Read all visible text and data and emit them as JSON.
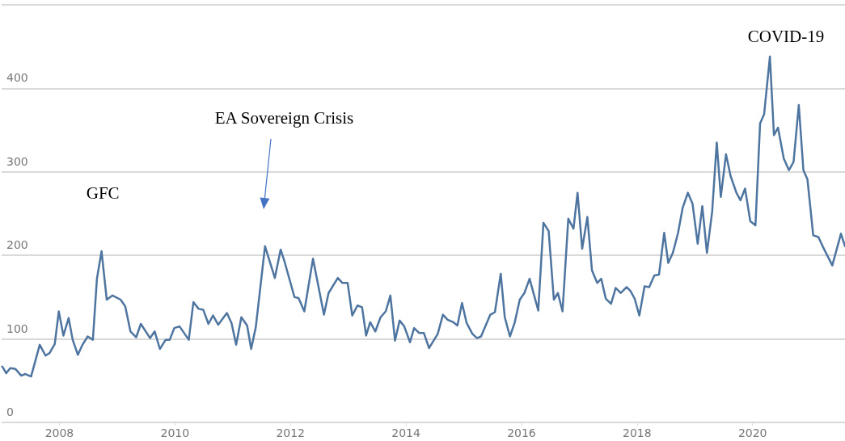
{
  "chart_data": {
    "type": "line",
    "xlim": [
      2007,
      2021.6
    ],
    "xticks": [
      2008,
      2010,
      2012,
      2014,
      2016,
      2018,
      2020
    ],
    "ylim": [
      0,
      500
    ],
    "yticks": [
      0,
      100,
      200,
      300,
      400,
      {
        "value": 500,
        "label": null
      }
    ],
    "grid": "y",
    "marker": "none",
    "line_style": "solid",
    "annotations": [
      "GFC",
      "EA Sovereign Crisis",
      "COVID-19"
    ],
    "series": [
      {
        "color": "#4e74a0",
        "x": [
          2007.01,
          2007.08,
          2007.15,
          2007.24,
          2007.34,
          2007.41,
          2007.51,
          2007.66,
          2007.76,
          2007.83,
          2007.92,
          2007.99,
          2008.07,
          2008.16,
          2008.23,
          2008.32,
          2008.4,
          2008.49,
          2008.58,
          2008.65,
          2008.73,
          2008.82,
          2008.92,
          2009.06,
          2009.14,
          2009.23,
          2009.33,
          2009.41,
          2009.57,
          2009.65,
          2009.74,
          2009.84,
          2009.91,
          2009.99,
          2010.08,
          2010.24,
          2010.32,
          2010.41,
          2010.49,
          2010.58,
          2010.66,
          2010.75,
          2010.9,
          2010.98,
          2011.06,
          2011.15,
          2011.25,
          2011.32,
          2011.4,
          2011.56,
          2011.73,
          2011.83,
          2011.9,
          2012.07,
          2012.14,
          2012.24,
          2012.39,
          2012.58,
          2012.66,
          2012.82,
          2012.9,
          2012.99,
          2013.07,
          2013.16,
          2013.24,
          2013.31,
          2013.38,
          2013.47,
          2013.56,
          2013.65,
          2013.73,
          2013.81,
          2013.89,
          2013.97,
          2014.07,
          2014.14,
          2014.23,
          2014.31,
          2014.4,
          2014.55,
          2014.64,
          2014.72,
          2014.82,
          2014.89,
          2014.97,
          2015.05,
          2015.15,
          2015.23,
          2015.3,
          2015.46,
          2015.54,
          2015.64,
          2015.71,
          2015.8,
          2015.88,
          2015.97,
          2016.05,
          2016.14,
          2016.29,
          2016.38,
          2016.47,
          2016.56,
          2016.63,
          2016.71,
          2016.81,
          2016.9,
          2016.97,
          2017.05,
          2017.14,
          2017.22,
          2017.31,
          2017.38,
          2017.46,
          2017.55,
          2017.63,
          2017.72,
          2017.82,
          2017.89,
          2017.96,
          2018.04,
          2018.13,
          2018.21,
          2018.3,
          2018.38,
          2018.47,
          2018.54,
          2018.62,
          2018.71,
          2018.79,
          2018.88,
          2018.96,
          2019.05,
          2019.13,
          2019.21,
          2019.3,
          2019.38,
          2019.45,
          2019.54,
          2019.62,
          2019.72,
          2019.79,
          2019.87,
          2019.96,
          2020.05,
          2020.13,
          2020.2,
          2020.3,
          2020.37,
          2020.44,
          2020.54,
          2020.63,
          2020.71,
          2020.8,
          2020.88,
          2020.95,
          2021.05,
          2021.14,
          2021.22,
          2021.38,
          2021.53,
          2021.6
        ],
        "values": [
          67,
          59,
          65,
          64,
          56,
          58,
          55,
          93,
          80,
          83,
          94,
          133,
          104,
          125,
          99,
          81,
          93,
          103,
          99,
          172,
          205,
          147,
          152,
          147,
          139,
          109,
          102,
          118,
          101,
          109,
          88,
          99,
          99,
          113,
          115,
          99,
          144,
          136,
          135,
          118,
          128,
          117,
          131,
          119,
          93,
          126,
          116,
          88,
          114,
          211,
          173,
          207,
          192,
          150,
          149,
          133,
          196,
          129,
          155,
          173,
          167,
          167,
          128,
          140,
          138,
          104,
          120,
          109,
          126,
          133,
          152,
          98,
          122,
          115,
          96,
          113,
          107,
          107,
          89,
          106,
          129,
          123,
          120,
          116,
          143,
          119,
          106,
          101,
          103,
          129,
          132,
          178,
          126,
          103,
          119,
          147,
          155,
          172,
          134,
          239,
          229,
          147,
          155,
          133,
          244,
          232,
          275,
          208,
          246,
          182,
          167,
          172,
          148,
          142,
          161,
          155,
          162,
          157,
          148,
          128,
          163,
          162,
          176,
          177,
          227,
          191,
          203,
          227,
          257,
          275,
          262,
          214,
          259,
          203,
          252,
          335,
          270,
          321,
          295,
          275,
          266,
          280,
          241,
          236,
          358,
          369,
          438,
          344,
          353,
          316,
          302,
          312,
          380,
          302,
          291,
          224,
          222,
          210,
          188,
          226,
          211
        ]
      }
    ]
  }
}
